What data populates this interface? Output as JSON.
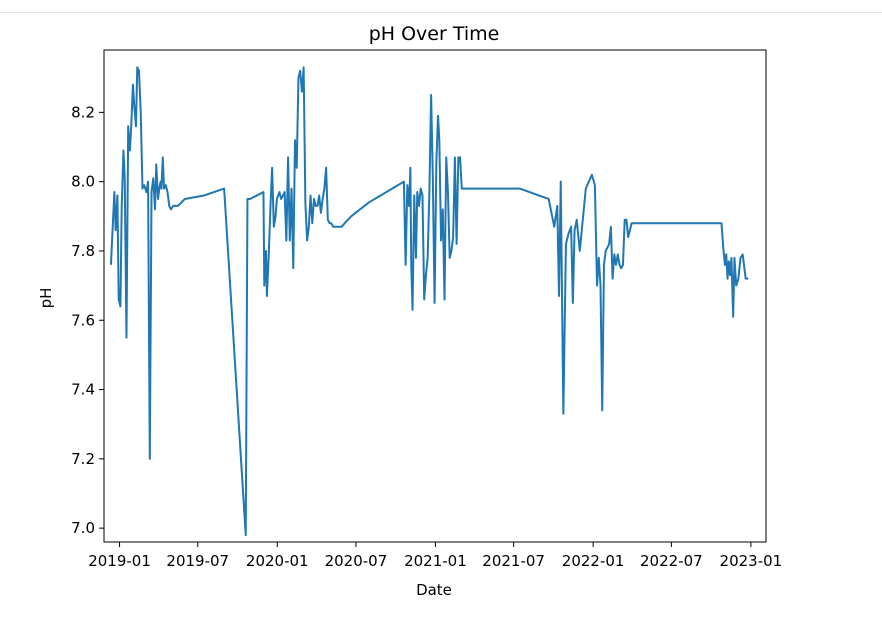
{
  "chart_data": {
    "type": "line",
    "title": "pH Over Time",
    "xlabel": "Date",
    "ylabel": "pH",
    "x_tick_labels": [
      "2019-01",
      "2019-07",
      "2020-01",
      "2020-07",
      "2021-01",
      "2021-07",
      "2022-01",
      "2022-07",
      "2023-01"
    ],
    "x_tick_dates": [
      "2019-01-01",
      "2019-07-01",
      "2020-01-01",
      "2020-07-01",
      "2021-01-01",
      "2021-07-01",
      "2022-01-01",
      "2022-07-01",
      "2023-01-01"
    ],
    "y_ticks": [
      7.0,
      7.2,
      7.4,
      7.6,
      7.8,
      8.0,
      8.2
    ],
    "y_tick_labels": [
      "7.0",
      "7.2",
      "7.4",
      "7.6",
      "7.8",
      "8.0",
      "8.2"
    ],
    "xlim": [
      "2018-11-26",
      "2023-02-05"
    ],
    "ylim": [
      6.96,
      8.38
    ],
    "grid": false,
    "legend": "none",
    "series": [
      {
        "color": "#1f77b4",
        "x": [
          "2018-12-12",
          "2018-12-20",
          "2018-12-23",
          "2018-12-27",
          "2018-12-30",
          "2019-01-03",
          "2019-01-06",
          "2019-01-10",
          "2019-01-13",
          "2019-01-17",
          "2019-01-21",
          "2019-01-25",
          "2019-01-28",
          "2019-02-01",
          "2019-02-04",
          "2019-02-08",
          "2019-02-11",
          "2019-02-15",
          "2019-02-19",
          "2019-02-23",
          "2019-02-27",
          "2019-03-04",
          "2019-03-08",
          "2019-03-12",
          "2019-03-16",
          "2019-03-20",
          "2019-03-24",
          "2019-03-27",
          "2019-03-31",
          "2019-04-03",
          "2019-04-06",
          "2019-04-08",
          "2019-04-11",
          "2019-04-14",
          "2019-04-18",
          "2019-04-22",
          "2019-04-26",
          "2019-04-30",
          "2019-05-05",
          "2019-05-10",
          "2019-05-16",
          "2019-06-01",
          "2019-07-15",
          "2019-08-31",
          "2019-10-20",
          "2019-10-24",
          "2019-10-30",
          "2019-11-30",
          "2019-12-02",
          "2019-12-06",
          "2019-12-08",
          "2019-12-12",
          "2019-12-16",
          "2019-12-20",
          "2019-12-24",
          "2019-12-28",
          "2019-12-31",
          "2020-01-03",
          "2020-01-06",
          "2020-01-10",
          "2020-01-14",
          "2020-01-18",
          "2020-01-22",
          "2020-01-26",
          "2020-01-30",
          "2020-02-03",
          "2020-02-07",
          "2020-02-11",
          "2020-02-15",
          "2020-02-19",
          "2020-02-23",
          "2020-02-27",
          "2020-03-02",
          "2020-03-06",
          "2020-03-10",
          "2020-03-14",
          "2020-03-18",
          "2020-03-22",
          "2020-03-26",
          "2020-03-30",
          "2020-04-03",
          "2020-04-07",
          "2020-04-11",
          "2020-04-15",
          "2020-04-19",
          "2020-04-23",
          "2020-04-27",
          "2020-05-01",
          "2020-05-05",
          "2020-05-09",
          "2020-05-13",
          "2020-05-17",
          "2020-05-21",
          "2020-05-25",
          "2020-05-29",
          "2020-06-05",
          "2020-06-20",
          "2020-07-31",
          "2020-10-20",
          "2020-10-24",
          "2020-10-28",
          "2020-11-01",
          "2020-11-04",
          "2020-11-06",
          "2020-11-09",
          "2020-11-13",
          "2020-11-17",
          "2020-11-20",
          "2020-11-24",
          "2020-11-28",
          "2020-12-02",
          "2020-12-06",
          "2020-12-10",
          "2020-12-14",
          "2020-12-18",
          "2020-12-22",
          "2020-12-26",
          "2020-12-30",
          "2021-01-03",
          "2021-01-07",
          "2021-01-10",
          "2021-01-14",
          "2021-01-18",
          "2021-01-22",
          "2021-01-26",
          "2021-01-30",
          "2021-02-03",
          "2021-02-07",
          "2021-02-11",
          "2021-02-15",
          "2021-02-19",
          "2021-02-23",
          "2021-02-27",
          "2021-03-03",
          "2021-03-07",
          "2021-03-11",
          "2021-03-15",
          "2021-03-19",
          "2021-03-23",
          "2021-03-27",
          "2021-03-31",
          "2021-04-04",
          "2021-04-08",
          "2021-04-12",
          "2021-04-16",
          "2021-04-20",
          "2021-04-24",
          "2021-04-28",
          "2021-05-02",
          "2021-05-06",
          "2021-05-25",
          "2021-07-15",
          "2021-09-20",
          "2021-10-03",
          "2021-10-10",
          "2021-10-14",
          "2021-10-18",
          "2021-10-24",
          "2021-10-30",
          "2021-11-05",
          "2021-11-11",
          "2021-11-15",
          "2021-11-19",
          "2021-11-24",
          "2021-12-01",
          "2021-12-15",
          "2021-12-29",
          "2022-01-05",
          "2022-01-10",
          "2022-01-14",
          "2022-01-18",
          "2022-01-22",
          "2022-01-26",
          "2022-01-30",
          "2022-02-03",
          "2022-02-07",
          "2022-02-11",
          "2022-02-15",
          "2022-02-19",
          "2022-02-23",
          "2022-02-27",
          "2022-03-03",
          "2022-03-07",
          "2022-03-11",
          "2022-03-15",
          "2022-03-19",
          "2022-03-23",
          "2022-03-27",
          "2022-03-31",
          "2022-04-04",
          "2022-04-08",
          "2022-04-12",
          "2022-04-16",
          "2022-04-20",
          "2022-04-24",
          "2022-04-28",
          "2022-05-02",
          "2022-05-06",
          "2022-10-25",
          "2022-10-29",
          "2022-11-02",
          "2022-11-05",
          "2022-11-08",
          "2022-11-11",
          "2022-11-14",
          "2022-11-17",
          "2022-11-21",
          "2022-11-24",
          "2022-11-28",
          "2022-12-03",
          "2022-12-08",
          "2022-12-13",
          "2022-12-20",
          "2022-12-26"
        ],
        "y": [
          7.76,
          7.97,
          7.86,
          7.96,
          7.66,
          7.64,
          7.93,
          8.09,
          8.01,
          7.55,
          8.16,
          8.09,
          8.16,
          8.28,
          8.22,
          8.16,
          8.33,
          8.32,
          8.2,
          7.98,
          7.99,
          7.97,
          8.0,
          7.2,
          7.97,
          8.01,
          7.92,
          8.05,
          7.95,
          7.98,
          8.0,
          7.98,
          8.07,
          7.98,
          7.99,
          7.97,
          7.93,
          7.92,
          7.93,
          7.93,
          7.93,
          7.95,
          7.96,
          7.98,
          6.98,
          7.95,
          7.95,
          7.97,
          7.7,
          7.8,
          7.67,
          7.78,
          7.92,
          8.04,
          7.87,
          7.9,
          7.95,
          7.96,
          7.97,
          7.95,
          7.96,
          7.97,
          7.83,
          8.07,
          7.83,
          7.98,
          7.75,
          8.12,
          8.04,
          8.3,
          8.32,
          8.26,
          8.33,
          7.94,
          7.83,
          7.87,
          7.96,
          7.88,
          7.95,
          7.93,
          7.93,
          7.96,
          7.91,
          7.95,
          7.98,
          8.04,
          7.89,
          7.88,
          7.88,
          7.87,
          7.87,
          7.87,
          7.87,
          7.87,
          7.87,
          7.88,
          7.9,
          7.94,
          8.0,
          7.76,
          7.99,
          7.93,
          8.04,
          7.76,
          7.63,
          7.96,
          7.78,
          7.97,
          7.93,
          7.98,
          7.96,
          7.66,
          7.73,
          7.78,
          7.97,
          8.25,
          8.01,
          7.65,
          8.05,
          8.19,
          8.12,
          7.83,
          7.92,
          7.66,
          8.07,
          7.97,
          7.78,
          7.8,
          7.84,
          8.07,
          7.82,
          8.07,
          8.07,
          7.98,
          7.98,
          7.98,
          7.98,
          7.98,
          7.98,
          7.98,
          7.98,
          7.98,
          7.98,
          7.98,
          7.98,
          7.98,
          7.98,
          7.98,
          7.98,
          7.98,
          7.98,
          7.98,
          7.95,
          7.87,
          7.93,
          7.67,
          8.0,
          7.33,
          7.82,
          7.85,
          7.87,
          7.65,
          7.86,
          7.89,
          7.8,
          7.98,
          8.02,
          7.99,
          7.7,
          7.78,
          7.7,
          7.34,
          7.76,
          7.8,
          7.81,
          7.82,
          7.87,
          7.72,
          7.79,
          7.76,
          7.79,
          7.76,
          7.75,
          7.76,
          7.89,
          7.89,
          7.84,
          7.86,
          7.88,
          7.88,
          7.88,
          7.88,
          7.88,
          7.88,
          7.88,
          7.88,
          7.88,
          7.88,
          7.88,
          7.81,
          7.76,
          7.79,
          7.72,
          7.77,
          7.73,
          7.78,
          7.61,
          7.78,
          7.7,
          7.72,
          7.78,
          7.79,
          7.72,
          7.72
        ]
      }
    ]
  }
}
